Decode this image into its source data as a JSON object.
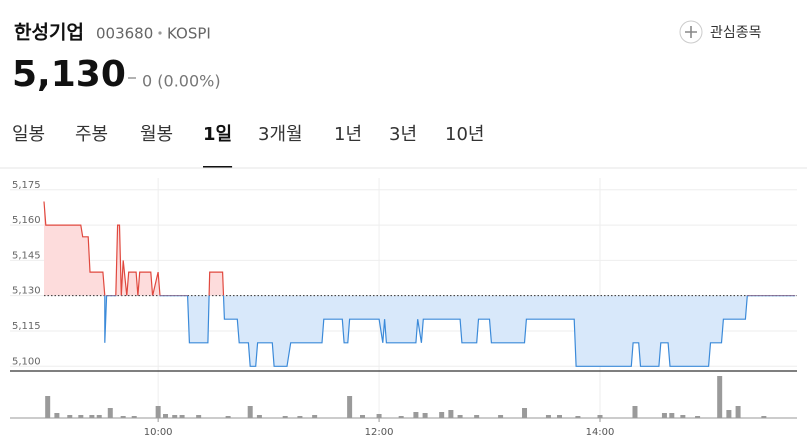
{
  "header": {
    "name": "한성기업",
    "code": "003680",
    "market": "KOSPI",
    "watch_button": "관심종목"
  },
  "price": {
    "current": "5,130",
    "change": "0 (0.00%)"
  },
  "tabs": [
    "일봉",
    "주봉",
    "월봉",
    "1일",
    "3개월",
    "1년",
    "3년",
    "10년"
  ],
  "selected_tab": 3,
  "chart_data": {
    "type": "line",
    "x": [
      538,
      539,
      558,
      559,
      562,
      563,
      570,
      571,
      571,
      572,
      577,
      578,
      579,
      580,
      581,
      583,
      584,
      588,
      589,
      590,
      596,
      597,
      600,
      601,
      616,
      617,
      627,
      628,
      635,
      636,
      643,
      644,
      649,
      650,
      653,
      654,
      662,
      663,
      670,
      672,
      689,
      690,
      700,
      701,
      703,
      704,
      720,
      722,
      723,
      724,
      740,
      741,
      743,
      744,
      764,
      765,
      773,
      774,
      780,
      781,
      799,
      800,
      826,
      827,
      857,
      858,
      861,
      862,
      872,
      873,
      877,
      878,
      899,
      900,
      906,
      907,
      912,
      919,
      920,
      946
    ],
    "values": [
      5170,
      5160,
      5160,
      5155,
      5155,
      5140,
      5140,
      5130,
      5110,
      5130,
      5130,
      5160,
      5160,
      5130,
      5145,
      5130,
      5140,
      5140,
      5130,
      5140,
      5140,
      5130,
      5140,
      5130,
      5130,
      5110,
      5110,
      5140,
      5140,
      5120,
      5120,
      5110,
      5110,
      5100,
      5100,
      5110,
      5110,
      5100,
      5100,
      5110,
      5110,
      5120,
      5120,
      5110,
      5110,
      5120,
      5120,
      5110,
      5120,
      5110,
      5110,
      5120,
      5110,
      5120,
      5120,
      5110,
      5110,
      5120,
      5120,
      5110,
      5110,
      5120,
      5120,
      5100,
      5100,
      5110,
      5110,
      5100,
      5100,
      5110,
      5110,
      5100,
      5100,
      5110,
      5110,
      5120,
      5120,
      5120,
      5130,
      5130
    ],
    "previous_close": 5130,
    "up_color": "#e0483e",
    "down_color": "#3b8ad9",
    "up_fill": "#fddcdc",
    "down_fill": "#d8e8fa",
    "xlim": [
      538,
      947
    ],
    "xticks": [
      {
        "value": 600,
        "label": "10:00"
      },
      {
        "value": 720,
        "label": "12:00"
      },
      {
        "value": 840,
        "label": "14:00"
      }
    ],
    "ylim": [
      5098,
      5180
    ],
    "yticks": [
      {
        "value": 5100,
        "label": "5,100"
      },
      {
        "value": 5115,
        "label": "5,115"
      },
      {
        "value": 5130,
        "label": "5,130"
      },
      {
        "value": 5145,
        "label": "5,145"
      },
      {
        "value": 5160,
        "label": "5,160"
      },
      {
        "value": 5175,
        "label": "5,175"
      }
    ],
    "grid": true,
    "volume": {
      "type": "bar",
      "color": "#9a9a9a",
      "x": [
        540,
        545,
        552,
        558,
        564,
        568,
        574,
        581,
        587,
        600,
        604,
        609,
        613,
        622,
        638,
        650,
        655,
        669,
        677,
        685,
        704,
        711,
        720,
        732,
        740,
        745,
        754,
        759,
        764,
        773,
        786,
        799,
        812,
        818,
        828,
        840,
        859,
        875,
        879,
        885,
        893,
        905,
        910,
        915,
        929
      ],
      "values": [
        22000,
        5000,
        3000,
        3000,
        3000,
        3000,
        10000,
        2000,
        2000,
        12000,
        4000,
        3000,
        3000,
        3000,
        2000,
        12000,
        3000,
        2000,
        2000,
        3000,
        22000,
        3000,
        4000,
        2000,
        6000,
        5000,
        6000,
        8000,
        3000,
        3000,
        3000,
        10000,
        3000,
        3000,
        2000,
        3000,
        12000,
        5000,
        5000,
        3000,
        2000,
        42000,
        8000,
        12000,
        2000
      ]
    }
  }
}
